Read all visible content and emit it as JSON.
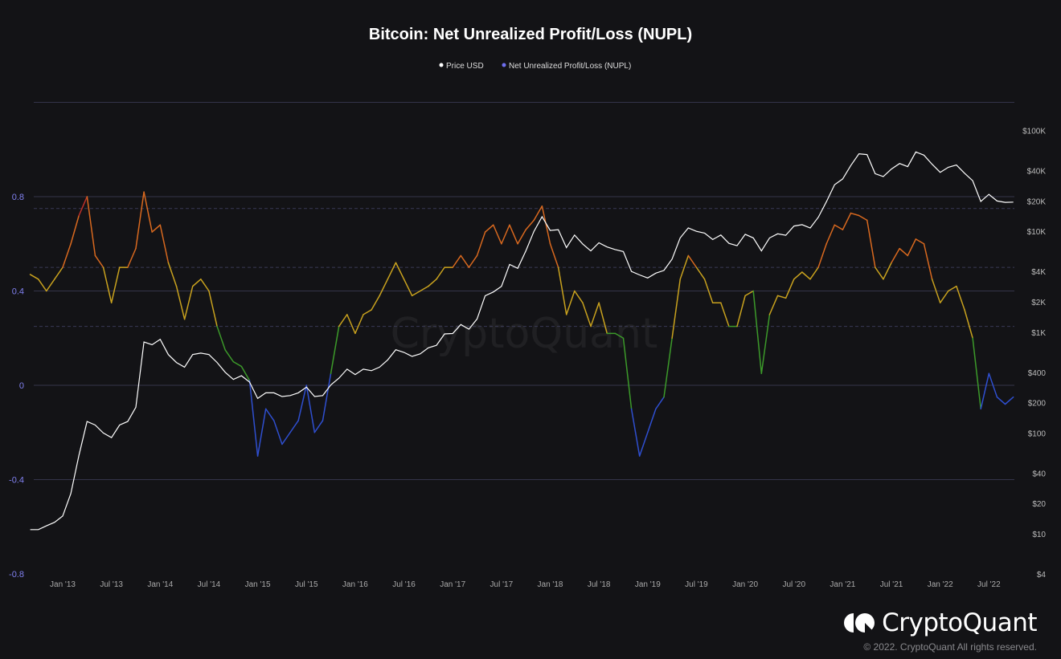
{
  "chart_data": {
    "type": "line",
    "title": "Bitcoin: Net Unrealized Profit/Loss (NUPL)",
    "legend": [
      "Price USD",
      "Net Unrealized Profit/Loss (NUPL)"
    ],
    "legend_placement": "top-center",
    "grid": true,
    "x_tick_labels": [
      "Jan '13",
      "Jul '13",
      "Jan '14",
      "Jul '14",
      "Jan '15",
      "Jul '15",
      "Jan '16",
      "Jul '16",
      "Jan '17",
      "Jul '17",
      "Jan '18",
      "Jul '18",
      "Jan '19",
      "Jul '19",
      "Jan '20",
      "Jul '20",
      "Jan '21",
      "Jul '21",
      "Jan '22",
      "Jul '22"
    ],
    "x_ticks": [
      "2013-01",
      "2013-07",
      "2014-01",
      "2014-07",
      "2015-01",
      "2015-07",
      "2016-01",
      "2016-07",
      "2017-01",
      "2017-07",
      "2018-01",
      "2018-07",
      "2019-01",
      "2019-07",
      "2020-01",
      "2020-07",
      "2021-01",
      "2021-07",
      "2022-01",
      "2022-07"
    ],
    "y_left": {
      "ticks": [
        0.8,
        0.4,
        0,
        -0.4,
        -0.8
      ],
      "tick_labels": [
        "0.8",
        "0.4",
        "0",
        "-0.4",
        "-0.8"
      ],
      "range": [
        -0.8,
        1.2
      ],
      "dashed_levels": [
        0.75,
        0.5,
        0.25
      ]
    },
    "y_right": {
      "scale": "log",
      "range": [
        4,
        200000
      ],
      "ticks": [
        100000,
        40000,
        20000,
        10000,
        4000,
        2000,
        1000,
        400,
        200,
        100,
        40,
        20,
        10,
        4
      ],
      "tick_labels": [
        "$100K",
        "$40K",
        "$20K",
        "$10K",
        "$4K",
        "$2K",
        "$1K",
        "$400",
        "$200",
        "$100",
        "$40",
        "$20",
        "$10",
        "$4"
      ]
    },
    "x": [
      "2012-09",
      "2012-10",
      "2012-11",
      "2012-12",
      "2013-01",
      "2013-02",
      "2013-03",
      "2013-04",
      "2013-05",
      "2013-06",
      "2013-07",
      "2013-08",
      "2013-09",
      "2013-10",
      "2013-11",
      "2013-12",
      "2014-01",
      "2014-02",
      "2014-03",
      "2014-04",
      "2014-05",
      "2014-06",
      "2014-07",
      "2014-08",
      "2014-09",
      "2014-10",
      "2014-11",
      "2014-12",
      "2015-01",
      "2015-02",
      "2015-03",
      "2015-04",
      "2015-05",
      "2015-06",
      "2015-07",
      "2015-08",
      "2015-09",
      "2015-10",
      "2015-11",
      "2015-12",
      "2016-01",
      "2016-02",
      "2016-03",
      "2016-04",
      "2016-05",
      "2016-06",
      "2016-07",
      "2016-08",
      "2016-09",
      "2016-10",
      "2016-11",
      "2016-12",
      "2017-01",
      "2017-02",
      "2017-03",
      "2017-04",
      "2017-05",
      "2017-06",
      "2017-07",
      "2017-08",
      "2017-09",
      "2017-10",
      "2017-11",
      "2017-12",
      "2018-01",
      "2018-02",
      "2018-03",
      "2018-04",
      "2018-05",
      "2018-06",
      "2018-07",
      "2018-08",
      "2018-09",
      "2018-10",
      "2018-11",
      "2018-12",
      "2019-01",
      "2019-02",
      "2019-03",
      "2019-04",
      "2019-05",
      "2019-06",
      "2019-07",
      "2019-08",
      "2019-09",
      "2019-10",
      "2019-11",
      "2019-12",
      "2020-01",
      "2020-02",
      "2020-03",
      "2020-04",
      "2020-05",
      "2020-06",
      "2020-07",
      "2020-08",
      "2020-09",
      "2020-10",
      "2020-11",
      "2020-12",
      "2021-01",
      "2021-02",
      "2021-03",
      "2021-04",
      "2021-05",
      "2021-06",
      "2021-07",
      "2021-08",
      "2021-09",
      "2021-10",
      "2021-11",
      "2021-12",
      "2022-01",
      "2022-02",
      "2022-03",
      "2022-04",
      "2022-05",
      "2022-06",
      "2022-07",
      "2022-08",
      "2022-09",
      "2022-10"
    ],
    "series": [
      {
        "name": "Price USD",
        "axis": "right",
        "color": "#ffffff",
        "values": [
          11,
          11,
          12,
          13,
          15,
          25,
          60,
          130,
          120,
          100,
          90,
          120,
          130,
          180,
          800,
          750,
          850,
          600,
          500,
          450,
          600,
          620,
          600,
          500,
          400,
          340,
          370,
          320,
          220,
          250,
          250,
          230,
          235,
          250,
          285,
          230,
          235,
          300,
          350,
          430,
          380,
          430,
          415,
          450,
          530,
          670,
          630,
          575,
          610,
          700,
          740,
          960,
          970,
          1190,
          1070,
          1350,
          2300,
          2500,
          2850,
          4700,
          4300,
          6400,
          10000,
          14000,
          10200,
          10400,
          6900,
          9200,
          7500,
          6400,
          7700,
          7000,
          6600,
          6300,
          4000,
          3700,
          3450,
          3850,
          4100,
          5300,
          8600,
          10800,
          10000,
          9600,
          8300,
          9200,
          7600,
          7200,
          9350,
          8600,
          6400,
          8600,
          9450,
          9150,
          11300,
          11650,
          10800,
          13800,
          19700,
          29000,
          33100,
          45000,
          58800,
          57700,
          37300,
          35000,
          41500,
          47100,
          43800,
          61300,
          57000,
          46300,
          38500,
          43200,
          45500,
          37700,
          31800,
          19800,
          23300,
          20000,
          19400,
          19500
        ]
      },
      {
        "name": "Net Unrealized Profit/Loss (NUPL)",
        "axis": "left",
        "color": "#6f6ff0",
        "values": [
          0.47,
          0.45,
          0.4,
          0.45,
          0.5,
          0.6,
          0.72,
          0.8,
          0.55,
          0.5,
          0.35,
          0.5,
          0.5,
          0.58,
          0.82,
          0.65,
          0.68,
          0.52,
          0.42,
          0.28,
          0.42,
          0.45,
          0.4,
          0.25,
          0.15,
          0.1,
          0.08,
          0.02,
          -0.3,
          -0.1,
          -0.15,
          -0.25,
          -0.2,
          -0.15,
          0.0,
          -0.2,
          -0.15,
          0.05,
          0.25,
          0.3,
          0.22,
          0.3,
          0.32,
          0.38,
          0.45,
          0.52,
          0.45,
          0.38,
          0.4,
          0.42,
          0.45,
          0.5,
          0.5,
          0.55,
          0.5,
          0.55,
          0.65,
          0.68,
          0.6,
          0.68,
          0.6,
          0.66,
          0.7,
          0.76,
          0.6,
          0.5,
          0.3,
          0.4,
          0.35,
          0.25,
          0.35,
          0.22,
          0.22,
          0.2,
          -0.1,
          -0.3,
          -0.2,
          -0.1,
          -0.05,
          0.2,
          0.45,
          0.55,
          0.5,
          0.45,
          0.35,
          0.35,
          0.25,
          0.25,
          0.38,
          0.4,
          0.05,
          0.3,
          0.38,
          0.37,
          0.45,
          0.48,
          0.45,
          0.5,
          0.6,
          0.68,
          0.66,
          0.73,
          0.72,
          0.7,
          0.5,
          0.45,
          0.52,
          0.58,
          0.55,
          0.62,
          0.6,
          0.45,
          0.35,
          0.4,
          0.42,
          0.32,
          0.2,
          -0.1,
          0.05,
          -0.05,
          -0.08,
          -0.05
        ]
      }
    ],
    "nupl_zone_colors": {
      "above_0.75": "#c0302a",
      "0.5_to_0.75": "#d9691f",
      "0.25_to_0.5": "#c9a21e",
      "0_to_0.25": "#3c9a2a",
      "below_0": "#2f4fd0"
    }
  },
  "watermark": "CryptoQuant",
  "footer": {
    "brand": "CryptoQuant",
    "copyright": "© 2022. CryptoQuant All rights reserved."
  }
}
